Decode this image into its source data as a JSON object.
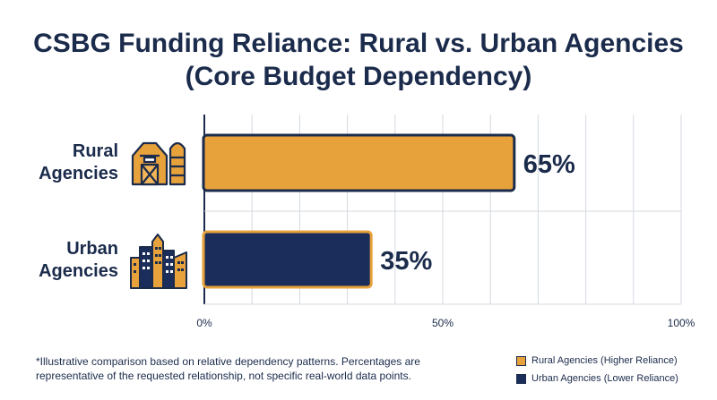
{
  "chart_data": {
    "type": "bar",
    "orientation": "horizontal",
    "title": [
      "CSBG Funding Reliance: Rural vs. Urban Agencies",
      "(Core Budget Dependency)"
    ],
    "categories": [
      "Rural Agencies",
      "Urban Agencies"
    ],
    "category_lines": [
      [
        "Rural",
        "Agencies"
      ],
      [
        "Urban",
        "Agencies"
      ]
    ],
    "values": [
      65,
      35
    ],
    "data_labels": [
      "65%",
      "35%"
    ],
    "xlim": [
      0,
      100
    ],
    "x_ticks": [
      {
        "value": 0,
        "label": "0%"
      },
      {
        "value": 50,
        "label": "50%"
      },
      {
        "value": 100,
        "label": "100%"
      }
    ],
    "grid": true,
    "legend_position": "bottom-right",
    "legend": [
      {
        "label": "Rural Agencies (Higher Reliance)",
        "color": "#e8a23c"
      },
      {
        "label": "Urban Agencies (Lower Reliance)",
        "color": "#1b2d5a"
      }
    ],
    "colors": {
      "rural_fill": "#e8a23c",
      "rural_border": "#1b2b4b",
      "urban_fill": "#1b2d5a",
      "urban_border": "#e8a23c",
      "text": "#1b2b4b"
    },
    "icons": [
      "barn-silo-icon",
      "city-skyline-icon"
    ]
  },
  "footnote": "*Illustrative comparison based on relative dependency patterns. Percentages are representative of the requested relationship, not specific real-world data points."
}
